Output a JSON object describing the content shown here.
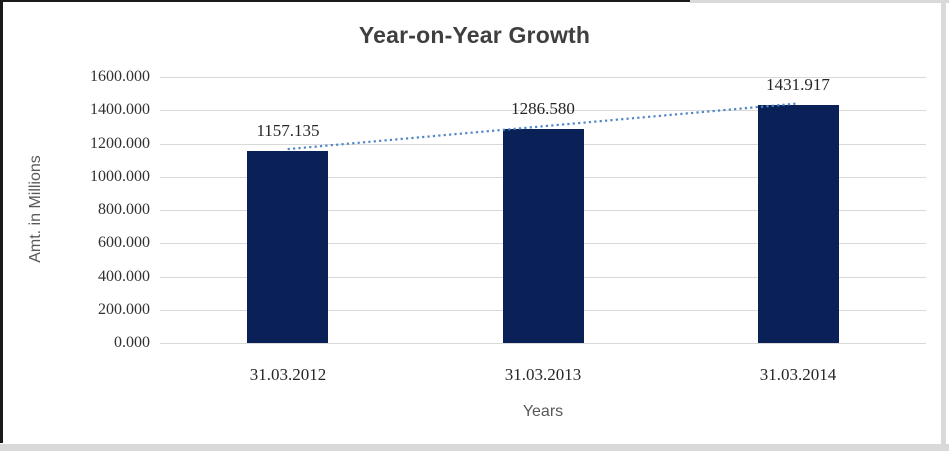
{
  "chart_data": {
    "type": "bar",
    "title": "Year-on-Year Growth",
    "xlabel": "Years",
    "ylabel": "Amt. in Millions",
    "categories": [
      "31.03.2012",
      "31.03.2013",
      "31.03.2014"
    ],
    "values": [
      1157.135,
      1286.58,
      1431.917
    ],
    "data_labels": [
      "1157.135",
      "1286.580",
      "1431.917"
    ],
    "y_ticks": [
      "1600.000",
      "1400.000",
      "1200.000",
      "1000.000",
      "800.000",
      "600.000",
      "400.000",
      "200.000",
      "0.000"
    ],
    "ylim": [
      0,
      1600
    ],
    "grid": true,
    "legend_position": "none",
    "bar_color": "#0a2158",
    "gridline_color": "#d9d9d9",
    "trendline": {
      "type": "linear",
      "style": "dotted",
      "color": "#4e86c6"
    }
  }
}
